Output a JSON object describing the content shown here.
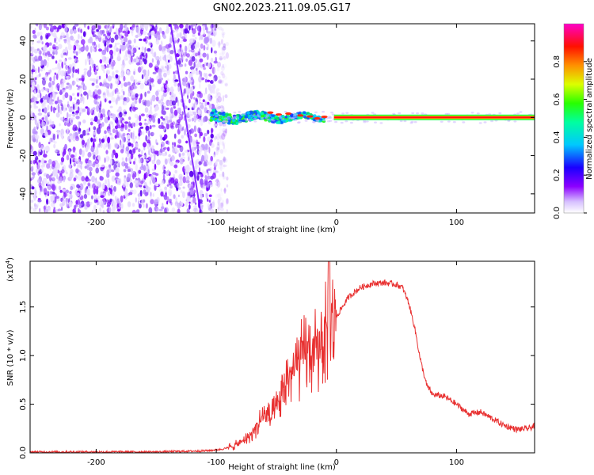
{
  "title": "GN02.2023.211.09.05.G17",
  "chart_data": [
    {
      "type": "heatmap",
      "xlabel": "Height of straight line (km)",
      "ylabel": "Frequency (Hz)",
      "xlim": [
        -255,
        165
      ],
      "ylim": [
        -50,
        49
      ],
      "xticks": [
        -200,
        -100,
        0,
        100
      ],
      "yticks": [
        -40,
        -20,
        0,
        20,
        40
      ],
      "colorbar": {
        "label": "Normalized spectral amplitude",
        "ticks": [
          "0.0",
          "0.2",
          "0.4",
          "0.6",
          "0.8"
        ],
        "range": [
          0,
          1
        ],
        "colormap": [
          "#e8e8ff",
          "#8c00ff",
          "#0000ff",
          "#00ffff",
          "#00ff00",
          "#ffff00",
          "#ff8800",
          "#ff0000",
          "#ff00ff"
        ]
      },
      "features": {
        "noise_region_x": [
          -255,
          -100
        ],
        "signal_line_frequency": 0,
        "signal_start_x": -105,
        "dominant_colors": {
          "noise": "#7a00ff",
          "strong_signal": "#ff2020",
          "medium_signal": "#00e000"
        }
      }
    },
    {
      "type": "line",
      "xlabel": "Height of straight line (km)",
      "ylabel": "SNR (10 * v/v)",
      "yscale_label": "(x10",
      "yscale_exp": "4",
      "yscale_close": ")",
      "xlim": [
        -255,
        165
      ],
      "ylim": [
        0,
        1.97
      ],
      "xticks": [
        -200,
        -100,
        0,
        100
      ],
      "yticks": [
        "0.0",
        "0.5",
        "1.0",
        "1.5"
      ],
      "color": "#e83030",
      "series": [
        {
          "x": [
            -255,
            -200,
            -150,
            -110,
            -100,
            -90,
            -80,
            -70,
            -60,
            -55,
            -50,
            -45,
            -40,
            -35,
            -30,
            -25,
            -20,
            -15,
            -10,
            -5,
            0,
            5,
            10,
            20,
            30,
            40,
            50,
            55,
            60,
            65,
            70,
            75,
            80,
            90,
            100,
            110,
            120,
            130,
            140,
            150,
            160,
            165
          ],
          "y": [
            0.01,
            0.01,
            0.01,
            0.02,
            0.03,
            0.05,
            0.1,
            0.2,
            0.4,
            0.35,
            0.45,
            0.6,
            0.8,
            0.85,
            0.95,
            1.05,
            1.0,
            1.1,
            1.2,
            1.3,
            1.4,
            1.5,
            1.6,
            1.7,
            1.74,
            1.75,
            1.73,
            1.7,
            1.55,
            1.3,
            0.95,
            0.7,
            0.6,
            0.58,
            0.5,
            0.4,
            0.42,
            0.35,
            0.28,
            0.24,
            0.25,
            0.28
          ]
        }
      ],
      "spike": {
        "x": -6,
        "y": 2.0
      }
    }
  ]
}
